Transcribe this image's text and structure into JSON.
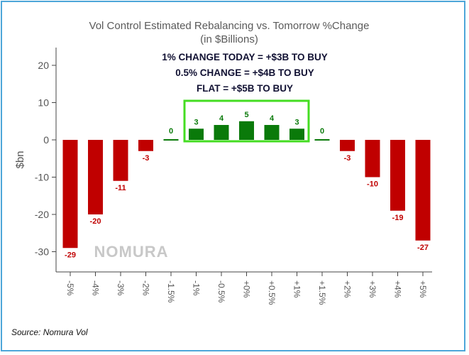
{
  "chart_data": {
    "type": "bar",
    "title": "Vol Control Estimated Rebalancing vs. Tomorrow %Change",
    "subtitle": "(in $Billions)",
    "xlabel": "",
    "ylabel": "$bn",
    "ylim": [
      -33,
      24
    ],
    "yticks": [
      20,
      10,
      0,
      -10,
      -20,
      -30
    ],
    "categories": [
      "-5%",
      "-4%",
      "-3%",
      "-2%",
      "-1.5%",
      "-1%",
      "-0.5%",
      "+0%",
      "+0.5%",
      "+1%",
      "+1.5%",
      "+2%",
      "+3%",
      "+4%",
      "+5%"
    ],
    "values": [
      -29,
      -20,
      -11,
      -3,
      0,
      3,
      4,
      5,
      4,
      3,
      0,
      -3,
      -10,
      -19,
      -27
    ],
    "annotations": [
      "1% CHANGE TODAY = +$3B TO BUY",
      "0.5% CHANGE = +$4B TO BUY",
      "FLAT = +$5B TO BUY"
    ],
    "highlight": "boxed bars -1% to +1%",
    "watermark": "NOMURA",
    "colors": {
      "negative": "#c00000",
      "positive": "#0a7a0a",
      "highlight_box": "#44dd22"
    }
  },
  "source": "Source: Nomura Vol"
}
